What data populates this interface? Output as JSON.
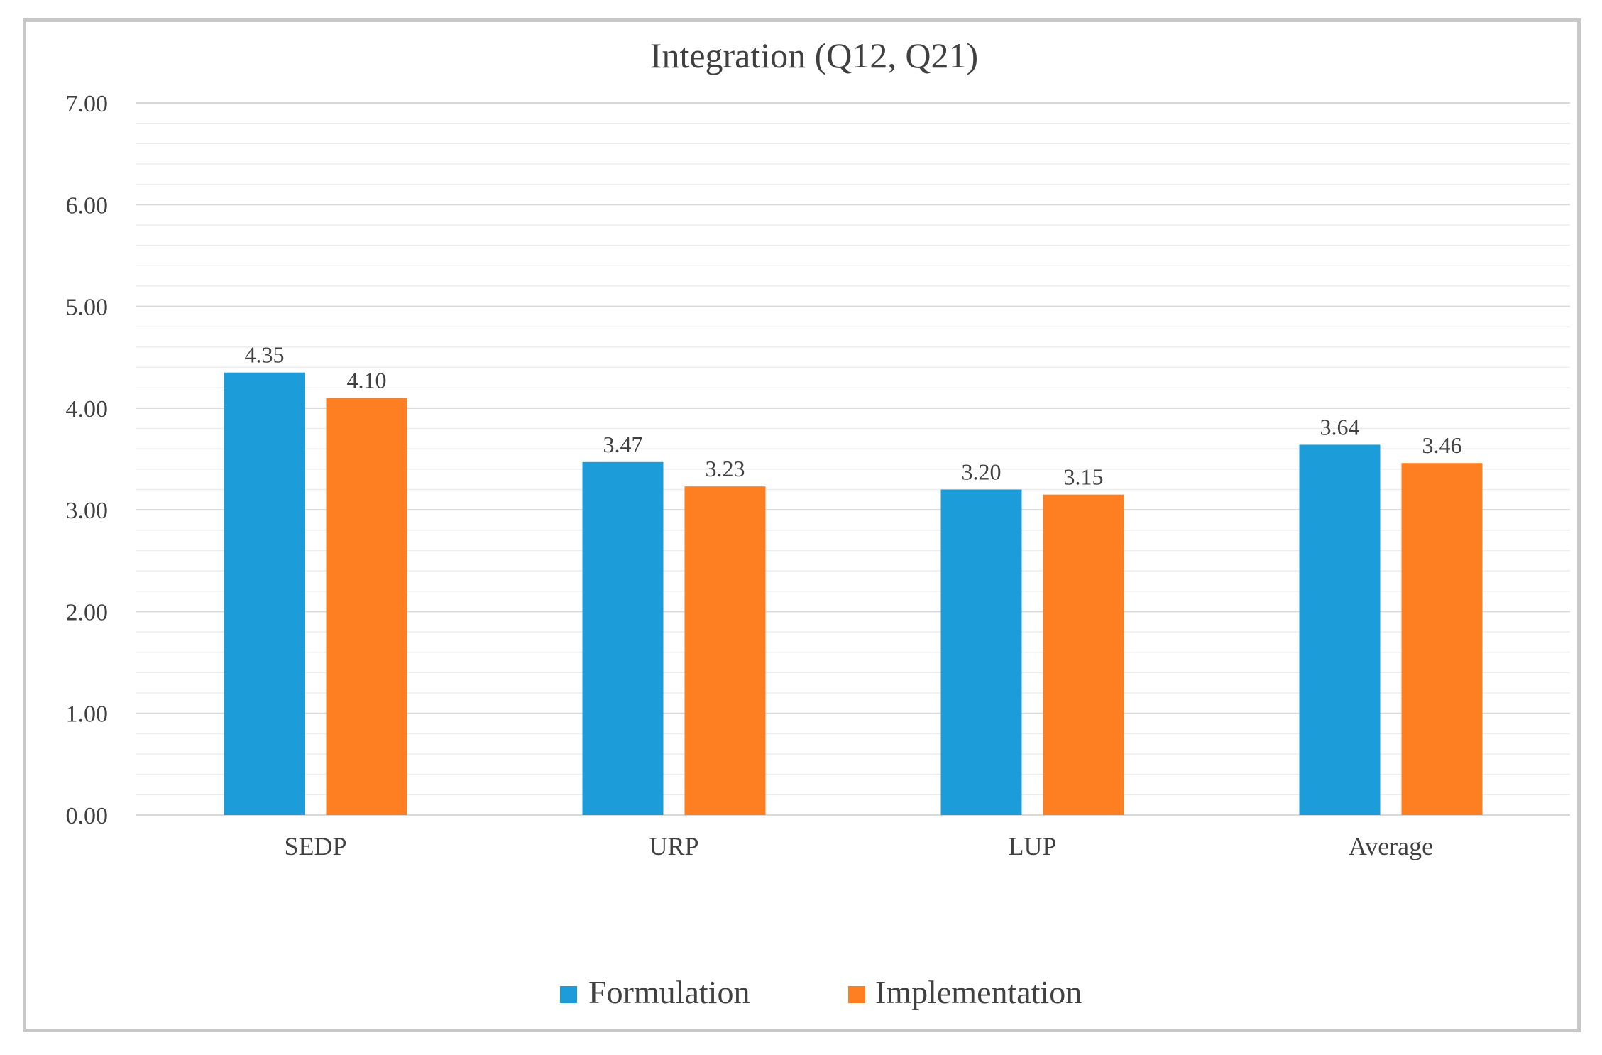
{
  "chart_data": {
    "type": "bar",
    "title": "Integration (Q12, Q21)",
    "xlabel": "",
    "ylabel": "",
    "categories": [
      "SEDP",
      "URP",
      "LUP",
      "Average"
    ],
    "series": [
      {
        "name": "Formulation",
        "color": "#1C9CD8",
        "values": [
          4.35,
          3.47,
          3.2,
          3.64
        ],
        "labels": [
          "4.35",
          "3.47",
          "3.20",
          "3.64"
        ]
      },
      {
        "name": "Implementation",
        "color": "#FD7F22",
        "values": [
          4.1,
          3.23,
          3.15,
          3.46
        ],
        "labels": [
          "4.10",
          "3.23",
          "3.15",
          "3.46"
        ]
      }
    ],
    "ylim": [
      0,
      7
    ],
    "yticks": [
      0,
      1,
      2,
      3,
      4,
      5,
      6,
      7
    ],
    "ytick_labels": [
      "0.00",
      "1.00",
      "2.00",
      "3.00",
      "4.00",
      "5.00",
      "6.00",
      "7.00"
    ],
    "minor_grid_step": 0.2,
    "grid": true,
    "legend_position": "bottom",
    "colors": {
      "major_grid": "#d9d9d9",
      "minor_grid": "#ededed",
      "text": "#404040",
      "title": "#404040"
    }
  }
}
